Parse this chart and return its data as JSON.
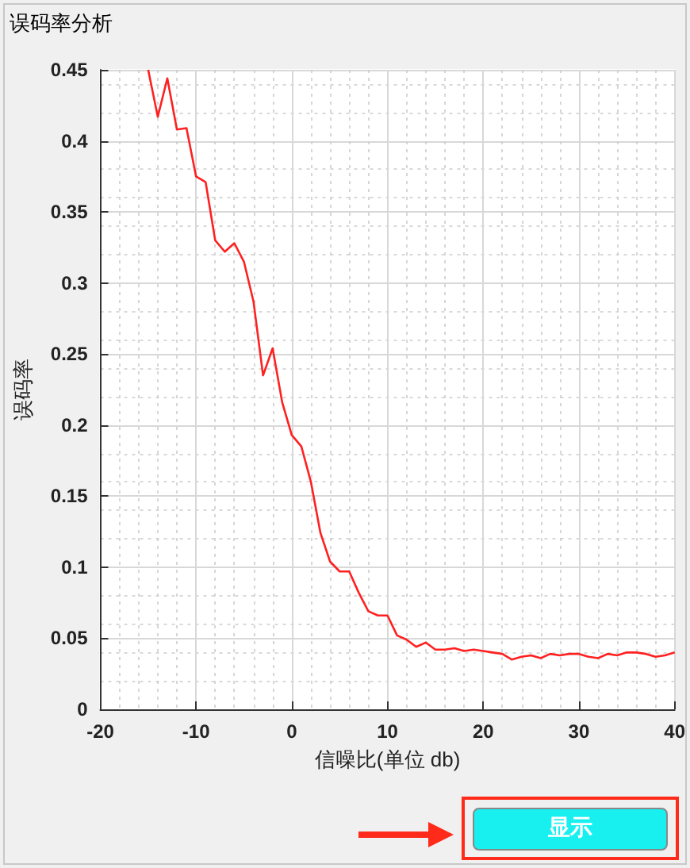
{
  "chart_data": {
    "type": "line",
    "title": "误码率分析",
    "xlabel": "信噪比(单位 db)",
    "ylabel": "误码率",
    "annotations": [
      "显示"
    ],
    "x": [
      -15,
      -14,
      -13,
      -12,
      -11,
      -10,
      -9,
      -8,
      -7,
      -6,
      -5,
      -4,
      -3,
      -2,
      -1,
      0,
      1,
      2,
      3,
      4,
      5,
      6,
      7,
      8,
      9,
      10,
      11,
      12,
      13,
      14,
      15,
      16,
      17,
      18,
      19,
      20,
      21,
      22,
      23,
      24,
      25,
      26,
      27,
      28,
      29,
      30,
      31,
      32,
      33,
      34,
      35,
      36,
      37,
      38,
      39,
      40
    ],
    "series": [
      {
        "color": "#ff2020",
        "values": [
          0.45,
          0.417,
          0.444,
          0.408,
          0.409,
          0.375,
          0.371,
          0.33,
          0.322,
          0.328,
          0.315,
          0.287,
          0.235,
          0.254,
          0.216,
          0.193,
          0.185,
          0.16,
          0.124,
          0.104,
          0.097,
          0.097,
          0.082,
          0.069,
          0.066,
          0.066,
          0.052,
          0.049,
          0.044,
          0.047,
          0.042,
          0.042,
          0.043,
          0.041,
          0.042,
          0.041,
          0.04,
          0.039,
          0.035,
          0.037,
          0.038,
          0.036,
          0.039,
          0.038,
          0.039,
          0.039,
          0.037,
          0.036,
          0.039,
          0.038,
          0.04,
          0.04,
          0.039,
          0.037,
          0.038,
          0.04
        ]
      }
    ],
    "xlim": [
      -20,
      40
    ],
    "xticks": [
      -20,
      -10,
      0,
      10,
      20,
      30,
      40
    ],
    "ylim": [
      0,
      0.45
    ],
    "yticks": [
      0,
      0.05,
      0.1,
      0.15,
      0.2,
      0.25,
      0.3,
      0.35,
      0.4,
      0.45
    ],
    "grid": true,
    "marker": "none",
    "line_style": "solid"
  }
}
